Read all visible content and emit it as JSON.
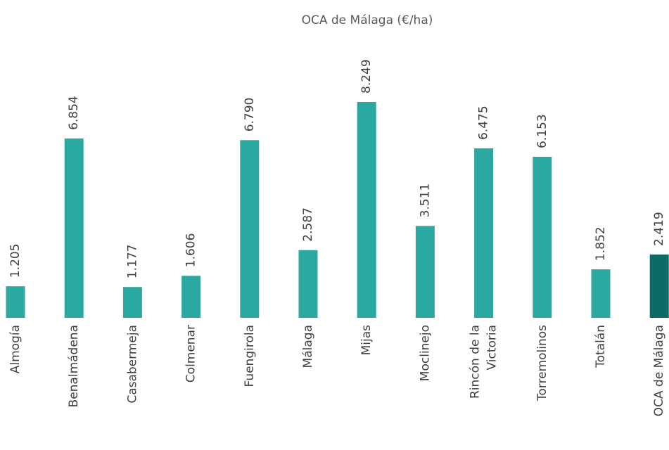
{
  "chart_data": {
    "type": "bar",
    "title": "OCA de Málaga (€/ha)",
    "categories": [
      "Almogía",
      "Benalmádena",
      "Casabermeja",
      "Colmenar",
      "Fuengirola",
      "Málaga",
      "Mijas",
      "Moclinejo",
      "Rincón de la Victoria",
      "Torremolinos",
      "Totalán",
      "OCA de Málaga"
    ],
    "values": [
      1205,
      6854,
      1177,
      1606,
      6790,
      2587,
      8249,
      3511,
      6475,
      6153,
      1852,
      2419
    ],
    "value_labels": [
      "1.205",
      "6.854",
      "1.177",
      "1.606",
      "6.790",
      "2.587",
      "8.249",
      "3.511",
      "6.475",
      "6.153",
      "1.852",
      "2.419"
    ],
    "colors": [
      "#2ba8a0",
      "#2ba8a0",
      "#2ba8a0",
      "#2ba8a0",
      "#2ba8a0",
      "#2ba8a0",
      "#2ba8a0",
      "#2ba8a0",
      "#2ba8a0",
      "#2ba8a0",
      "#2ba8a0",
      "#0b6b66"
    ]
  }
}
